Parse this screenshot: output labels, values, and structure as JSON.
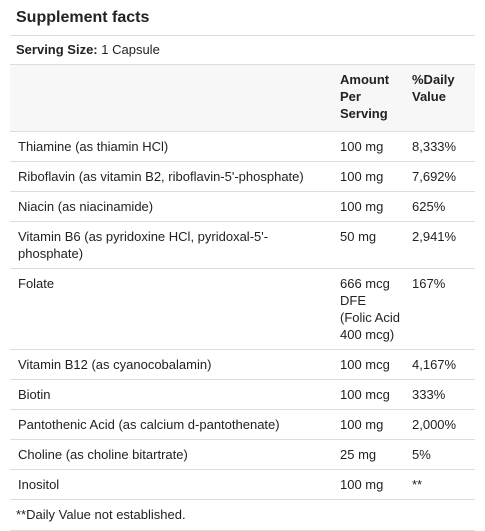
{
  "title": "Supplement facts",
  "serving_size": {
    "label": "Serving Size:",
    "value": "1 Capsule"
  },
  "table": {
    "columns": [
      "Amount Per Serving",
      "%Daily Value"
    ],
    "rows": [
      [
        "Thiamine (as thiamin HCl)",
        "100 mg",
        "8,333%"
      ],
      [
        "Riboflavin (as vitamin B2, riboflavin-5'-phosphate)",
        "100 mg",
        "7,692%"
      ],
      [
        "Niacin (as niacinamide)",
        "100 mg",
        "625%"
      ],
      [
        "Vitamin B6 (as pyridoxine HCl, pyridoxal-5'-phosphate)",
        "50 mg",
        "2,941%"
      ],
      [
        "Folate",
        "666 mcg DFE (Folic Acid 400 mcg)",
        "167%"
      ],
      [
        "Vitamin B12 (as cyanocobalamin)",
        "100 mcg",
        "4,167%"
      ],
      [
        "Biotin",
        "100 mcg",
        "333%"
      ],
      [
        "Pantothenic Acid (as calcium d-pantothenate)",
        "100 mg",
        "2,000%"
      ],
      [
        "Choline (as choline bitartrate)",
        "25 mg",
        "5%"
      ],
      [
        "Inositol",
        "100 mg",
        "**"
      ]
    ]
  },
  "footnote": "**Daily Value not established."
}
